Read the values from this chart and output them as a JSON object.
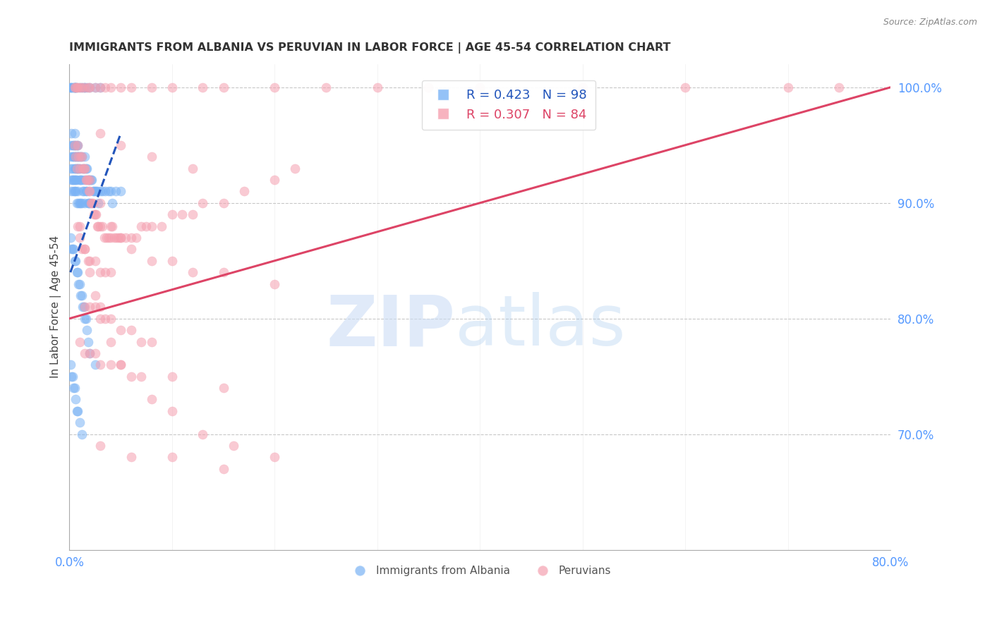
{
  "title": "IMMIGRANTS FROM ALBANIA VS PERUVIAN IN LABOR FORCE | AGE 45-54 CORRELATION CHART",
  "source": "Source: ZipAtlas.com",
  "ylabel": "In Labor Force | Age 45-54",
  "xlim": [
    0.0,
    0.8
  ],
  "ylim": [
    0.6,
    1.02
  ],
  "background_color": "#ffffff",
  "grid_color": "#c8c8c8",
  "blue_color": "#7ab3f5",
  "pink_color": "#f5a0b0",
  "blue_trend_color": "#2255bb",
  "pink_trend_color": "#dd4466",
  "blue_trend_dashed": true,
  "pink_trend_dashed": false,
  "albania_x": [
    0.001,
    0.001,
    0.001,
    0.002,
    0.002,
    0.002,
    0.003,
    0.003,
    0.003,
    0.003,
    0.004,
    0.004,
    0.004,
    0.004,
    0.005,
    0.005,
    0.005,
    0.005,
    0.005,
    0.005,
    0.006,
    0.006,
    0.006,
    0.006,
    0.006,
    0.007,
    0.007,
    0.007,
    0.007,
    0.007,
    0.008,
    0.008,
    0.008,
    0.008,
    0.009,
    0.009,
    0.009,
    0.01,
    0.01,
    0.01,
    0.01,
    0.011,
    0.011,
    0.011,
    0.012,
    0.012,
    0.012,
    0.013,
    0.013,
    0.014,
    0.014,
    0.015,
    0.015,
    0.015,
    0.016,
    0.016,
    0.017,
    0.017,
    0.018,
    0.018,
    0.019,
    0.019,
    0.02,
    0.02,
    0.021,
    0.022,
    0.023,
    0.024,
    0.025,
    0.026,
    0.027,
    0.028,
    0.03,
    0.032,
    0.035,
    0.038,
    0.04,
    0.042,
    0.045,
    0.05,
    0.001,
    0.002,
    0.003,
    0.004,
    0.005,
    0.006,
    0.007,
    0.008,
    0.009,
    0.01,
    0.011,
    0.012,
    0.013,
    0.014,
    0.015,
    0.016,
    0.017,
    0.018,
    0.02,
    0.025
  ],
  "albania_y": [
    0.95,
    0.94,
    0.93,
    0.96,
    0.92,
    0.91,
    0.95,
    0.94,
    0.93,
    0.92,
    0.95,
    0.94,
    0.92,
    0.91,
    0.96,
    0.95,
    0.94,
    0.93,
    0.92,
    0.91,
    0.95,
    0.94,
    0.93,
    0.92,
    0.91,
    0.95,
    0.94,
    0.93,
    0.92,
    0.9,
    0.95,
    0.94,
    0.93,
    0.91,
    0.94,
    0.93,
    0.9,
    0.94,
    0.93,
    0.92,
    0.9,
    0.94,
    0.92,
    0.9,
    0.94,
    0.92,
    0.9,
    0.93,
    0.91,
    0.93,
    0.91,
    0.94,
    0.92,
    0.9,
    0.93,
    0.91,
    0.93,
    0.91,
    0.92,
    0.9,
    0.92,
    0.9,
    0.92,
    0.9,
    0.92,
    0.92,
    0.91,
    0.91,
    0.91,
    0.91,
    0.91,
    0.9,
    0.91,
    0.91,
    0.91,
    0.91,
    0.91,
    0.9,
    0.91,
    0.91,
    0.87,
    0.86,
    0.86,
    0.86,
    0.85,
    0.85,
    0.84,
    0.84,
    0.83,
    0.83,
    0.82,
    0.82,
    0.81,
    0.81,
    0.8,
    0.8,
    0.79,
    0.78,
    0.77,
    0.76
  ],
  "albania_top_x": [
    0.001,
    0.001,
    0.002,
    0.003,
    0.004,
    0.005,
    0.005,
    0.005,
    0.006,
    0.006,
    0.007,
    0.01,
    0.012,
    0.014,
    0.015,
    0.017,
    0.02,
    0.025,
    0.03
  ],
  "albania_top_y": [
    1.0,
    1.0,
    1.0,
    1.0,
    1.0,
    1.0,
    1.0,
    1.0,
    1.0,
    1.0,
    1.0,
    1.0,
    1.0,
    1.0,
    1.0,
    1.0,
    1.0,
    1.0,
    1.0
  ],
  "albania_low_x": [
    0.001,
    0.002,
    0.003,
    0.004,
    0.005,
    0.006,
    0.007,
    0.008,
    0.01,
    0.012
  ],
  "albania_low_y": [
    0.76,
    0.75,
    0.75,
    0.74,
    0.74,
    0.73,
    0.72,
    0.72,
    0.71,
    0.7
  ],
  "peruvian_x": [
    0.005,
    0.006,
    0.007,
    0.008,
    0.009,
    0.01,
    0.011,
    0.012,
    0.013,
    0.014,
    0.015,
    0.016,
    0.017,
    0.018,
    0.019,
    0.02,
    0.021,
    0.022,
    0.023,
    0.024,
    0.025,
    0.026,
    0.027,
    0.028,
    0.03,
    0.032,
    0.034,
    0.036,
    0.038,
    0.04,
    0.042,
    0.044,
    0.046,
    0.048,
    0.05,
    0.055,
    0.06,
    0.065,
    0.07,
    0.075,
    0.08,
    0.09,
    0.1,
    0.11,
    0.12,
    0.13,
    0.15,
    0.17,
    0.2,
    0.22,
    0.008,
    0.01,
    0.012,
    0.015,
    0.018,
    0.02,
    0.025,
    0.03,
    0.035,
    0.04,
    0.015,
    0.02,
    0.025,
    0.03,
    0.035,
    0.04,
    0.05,
    0.06,
    0.07,
    0.08,
    0.01,
    0.015,
    0.02,
    0.025,
    0.03,
    0.04,
    0.05,
    0.07,
    0.1,
    0.15,
    0.03,
    0.06,
    0.1,
    0.15
  ],
  "peruvian_y": [
    0.95,
    0.94,
    0.93,
    0.95,
    0.94,
    0.93,
    0.94,
    0.94,
    0.93,
    0.93,
    0.93,
    0.92,
    0.92,
    0.92,
    0.91,
    0.91,
    0.9,
    0.9,
    0.9,
    0.89,
    0.89,
    0.89,
    0.88,
    0.88,
    0.88,
    0.88,
    0.87,
    0.87,
    0.87,
    0.87,
    0.88,
    0.87,
    0.87,
    0.87,
    0.87,
    0.87,
    0.87,
    0.87,
    0.88,
    0.88,
    0.88,
    0.88,
    0.89,
    0.89,
    0.89,
    0.9,
    0.9,
    0.91,
    0.92,
    0.93,
    0.88,
    0.87,
    0.86,
    0.86,
    0.85,
    0.85,
    0.85,
    0.84,
    0.84,
    0.84,
    0.81,
    0.81,
    0.81,
    0.81,
    0.8,
    0.8,
    0.79,
    0.79,
    0.78,
    0.78,
    0.78,
    0.77,
    0.77,
    0.77,
    0.76,
    0.76,
    0.76,
    0.75,
    0.75,
    0.74,
    0.69,
    0.68,
    0.68,
    0.67
  ],
  "peruvian_top_x": [
    0.005,
    0.006,
    0.007,
    0.008,
    0.01,
    0.012,
    0.015,
    0.018,
    0.02,
    0.025,
    0.03,
    0.035,
    0.04,
    0.05,
    0.06,
    0.08,
    0.1,
    0.13,
    0.15,
    0.2,
    0.25,
    0.3,
    0.35,
    0.4,
    0.5,
    0.6,
    0.7,
    0.75
  ],
  "peruvian_top_y": [
    1.0,
    1.0,
    1.0,
    1.0,
    1.0,
    1.0,
    1.0,
    1.0,
    1.0,
    1.0,
    1.0,
    1.0,
    1.0,
    1.0,
    1.0,
    1.0,
    1.0,
    1.0,
    1.0,
    1.0,
    1.0,
    1.0,
    1.0,
    1.0,
    1.0,
    1.0,
    1.0,
    1.0
  ],
  "peruvian_mid_x": [
    0.02,
    0.03,
    0.04,
    0.05,
    0.06,
    0.08,
    0.1,
    0.12,
    0.15,
    0.2
  ],
  "peruvian_mid_y": [
    0.92,
    0.9,
    0.88,
    0.87,
    0.86,
    0.85,
    0.85,
    0.84,
    0.84,
    0.83
  ],
  "peruvian_scatter_x": [
    0.01,
    0.015,
    0.02,
    0.025,
    0.03,
    0.04,
    0.05,
    0.06,
    0.08,
    0.1,
    0.13,
    0.16,
    0.2,
    0.03,
    0.05,
    0.08,
    0.12
  ],
  "peruvian_scatter_y": [
    0.88,
    0.86,
    0.84,
    0.82,
    0.8,
    0.78,
    0.76,
    0.75,
    0.73,
    0.72,
    0.7,
    0.69,
    0.68,
    0.96,
    0.95,
    0.94,
    0.93
  ],
  "blue_trend_x": [
    0.001,
    0.05
  ],
  "blue_trend_y": [
    0.84,
    0.96
  ],
  "pink_trend_x": [
    0.0,
    0.8
  ],
  "pink_trend_y": [
    0.8,
    1.0
  ]
}
